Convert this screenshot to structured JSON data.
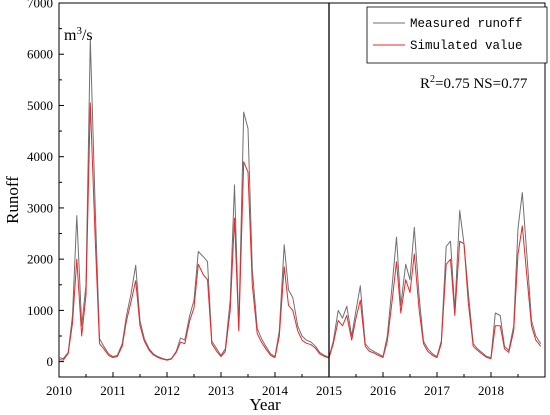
{
  "chart_data": {
    "type": "line",
    "title": "",
    "xlabel": "Year",
    "ylabel": "Runoff",
    "yunit_base": "m",
    "yunit_sup": "3",
    "yunit_suffix": "/s",
    "xlim": [
      2010,
      2019
    ],
    "ylim": [
      -300,
      7000
    ],
    "x_ticks": [
      2010,
      2011,
      2012,
      2013,
      2014,
      2015,
      2016,
      2017,
      2018
    ],
    "x_tick_labels": [
      "2010",
      "2011",
      "2012",
      "2013",
      "2014",
      "2015",
      "2016",
      "2017",
      "2018"
    ],
    "y_ticks": [
      0,
      1000,
      2000,
      3000,
      4000,
      5000,
      6000,
      7000
    ],
    "y_tick_labels": [
      "0",
      "1000",
      "2000",
      "3000",
      "4000",
      "5000",
      "6000",
      "7000"
    ],
    "divider_x": 2015,
    "grid": false,
    "legend_position": "top-right",
    "annotation": {
      "r_label": "R",
      "r_sup": "2",
      "r_value": "=0.75 NS=0.77"
    },
    "series": [
      {
        "name": "Measured runoff",
        "color": "#707070",
        "points": [
          [
            2010.0,
            80
          ],
          [
            2010.08,
            60
          ],
          [
            2010.17,
            180
          ],
          [
            2010.25,
            900
          ],
          [
            2010.33,
            2850
          ],
          [
            2010.42,
            700
          ],
          [
            2010.5,
            1500
          ],
          [
            2010.58,
            6300
          ],
          [
            2010.67,
            3000
          ],
          [
            2010.75,
            450
          ],
          [
            2010.83,
            300
          ],
          [
            2010.92,
            150
          ],
          [
            2011.0,
            100
          ],
          [
            2011.08,
            120
          ],
          [
            2011.17,
            350
          ],
          [
            2011.25,
            900
          ],
          [
            2011.33,
            1300
          ],
          [
            2011.42,
            1880
          ],
          [
            2011.5,
            800
          ],
          [
            2011.58,
            450
          ],
          [
            2011.67,
            250
          ],
          [
            2011.75,
            150
          ],
          [
            2011.83,
            100
          ],
          [
            2011.92,
            60
          ],
          [
            2012.0,
            40
          ],
          [
            2012.08,
            60
          ],
          [
            2012.17,
            200
          ],
          [
            2012.25,
            460
          ],
          [
            2012.33,
            420
          ],
          [
            2012.42,
            900
          ],
          [
            2012.5,
            1200
          ],
          [
            2012.58,
            2150
          ],
          [
            2012.67,
            2050
          ],
          [
            2012.75,
            1950
          ],
          [
            2012.83,
            400
          ],
          [
            2012.92,
            250
          ],
          [
            2013.0,
            120
          ],
          [
            2013.08,
            250
          ],
          [
            2013.17,
            1200
          ],
          [
            2013.25,
            3450
          ],
          [
            2013.33,
            650
          ],
          [
            2013.42,
            4870
          ],
          [
            2013.5,
            4550
          ],
          [
            2013.58,
            1800
          ],
          [
            2013.67,
            650
          ],
          [
            2013.75,
            450
          ],
          [
            2013.83,
            300
          ],
          [
            2013.92,
            150
          ],
          [
            2014.0,
            100
          ],
          [
            2014.08,
            600
          ],
          [
            2014.17,
            2280
          ],
          [
            2014.25,
            1400
          ],
          [
            2014.33,
            1250
          ],
          [
            2014.42,
            700
          ],
          [
            2014.5,
            500
          ],
          [
            2014.58,
            420
          ],
          [
            2014.67,
            380
          ],
          [
            2014.75,
            300
          ],
          [
            2014.83,
            180
          ],
          [
            2014.92,
            120
          ],
          [
            2015.0,
            80
          ],
          [
            2015.08,
            400
          ],
          [
            2015.17,
            1000
          ],
          [
            2015.25,
            850
          ],
          [
            2015.33,
            1080
          ],
          [
            2015.42,
            500
          ],
          [
            2015.5,
            1000
          ],
          [
            2015.58,
            1480
          ],
          [
            2015.67,
            350
          ],
          [
            2015.75,
            250
          ],
          [
            2015.83,
            200
          ],
          [
            2015.92,
            150
          ],
          [
            2016.0,
            100
          ],
          [
            2016.08,
            500
          ],
          [
            2016.17,
            1500
          ],
          [
            2016.25,
            2430
          ],
          [
            2016.33,
            1100
          ],
          [
            2016.42,
            1900
          ],
          [
            2016.5,
            1600
          ],
          [
            2016.58,
            2620
          ],
          [
            2016.67,
            1250
          ],
          [
            2016.75,
            400
          ],
          [
            2016.83,
            250
          ],
          [
            2016.92,
            150
          ],
          [
            2017.0,
            100
          ],
          [
            2017.08,
            400
          ],
          [
            2017.17,
            2250
          ],
          [
            2017.25,
            2350
          ],
          [
            2017.33,
            1000
          ],
          [
            2017.42,
            2950
          ],
          [
            2017.5,
            2300
          ],
          [
            2017.58,
            1350
          ],
          [
            2017.67,
            350
          ],
          [
            2017.75,
            250
          ],
          [
            2017.83,
            180
          ],
          [
            2017.92,
            100
          ],
          [
            2018.0,
            80
          ],
          [
            2018.08,
            950
          ],
          [
            2018.17,
            900
          ],
          [
            2018.25,
            300
          ],
          [
            2018.33,
            220
          ],
          [
            2018.42,
            700
          ],
          [
            2018.5,
            2600
          ],
          [
            2018.58,
            3300
          ],
          [
            2018.67,
            2000
          ],
          [
            2018.75,
            800
          ],
          [
            2018.83,
            500
          ],
          [
            2018.92,
            350
          ]
        ]
      },
      {
        "name": "Simulated value",
        "color": "#e8282a",
        "points": [
          [
            2010.0,
            40
          ],
          [
            2010.08,
            30
          ],
          [
            2010.17,
            160
          ],
          [
            2010.25,
            750
          ],
          [
            2010.33,
            2000
          ],
          [
            2010.42,
            500
          ],
          [
            2010.5,
            1300
          ],
          [
            2010.58,
            5050
          ],
          [
            2010.67,
            2400
          ],
          [
            2010.75,
            350
          ],
          [
            2010.83,
            250
          ],
          [
            2010.92,
            120
          ],
          [
            2011.0,
            80
          ],
          [
            2011.08,
            100
          ],
          [
            2011.17,
            300
          ],
          [
            2011.25,
            800
          ],
          [
            2011.33,
            1150
          ],
          [
            2011.42,
            1580
          ],
          [
            2011.5,
            700
          ],
          [
            2011.58,
            400
          ],
          [
            2011.67,
            220
          ],
          [
            2011.75,
            130
          ],
          [
            2011.83,
            80
          ],
          [
            2011.92,
            50
          ],
          [
            2012.0,
            30
          ],
          [
            2012.08,
            50
          ],
          [
            2012.17,
            180
          ],
          [
            2012.25,
            380
          ],
          [
            2012.33,
            350
          ],
          [
            2012.42,
            800
          ],
          [
            2012.5,
            1050
          ],
          [
            2012.58,
            1900
          ],
          [
            2012.67,
            1700
          ],
          [
            2012.75,
            1600
          ],
          [
            2012.83,
            350
          ],
          [
            2012.92,
            200
          ],
          [
            2013.0,
            100
          ],
          [
            2013.08,
            200
          ],
          [
            2013.17,
            1000
          ],
          [
            2013.25,
            2800
          ],
          [
            2013.33,
            600
          ],
          [
            2013.42,
            3900
          ],
          [
            2013.5,
            3700
          ],
          [
            2013.58,
            1500
          ],
          [
            2013.67,
            550
          ],
          [
            2013.75,
            380
          ],
          [
            2013.83,
            250
          ],
          [
            2013.92,
            120
          ],
          [
            2014.0,
            80
          ],
          [
            2014.08,
            500
          ],
          [
            2014.17,
            1850
          ],
          [
            2014.25,
            1100
          ],
          [
            2014.33,
            1000
          ],
          [
            2014.42,
            600
          ],
          [
            2014.5,
            420
          ],
          [
            2014.58,
            360
          ],
          [
            2014.67,
            330
          ],
          [
            2014.75,
            260
          ],
          [
            2014.83,
            150
          ],
          [
            2014.92,
            100
          ],
          [
            2015.0,
            70
          ],
          [
            2015.08,
            350
          ],
          [
            2015.17,
            800
          ],
          [
            2015.25,
            700
          ],
          [
            2015.33,
            900
          ],
          [
            2015.42,
            420
          ],
          [
            2015.5,
            850
          ],
          [
            2015.58,
            1200
          ],
          [
            2015.67,
            300
          ],
          [
            2015.75,
            200
          ],
          [
            2015.83,
            170
          ],
          [
            2015.92,
            120
          ],
          [
            2016.0,
            80
          ],
          [
            2016.08,
            400
          ],
          [
            2016.17,
            1200
          ],
          [
            2016.25,
            1950
          ],
          [
            2016.33,
            950
          ],
          [
            2016.42,
            1600
          ],
          [
            2016.5,
            1350
          ],
          [
            2016.58,
            2100
          ],
          [
            2016.67,
            1000
          ],
          [
            2016.75,
            350
          ],
          [
            2016.83,
            200
          ],
          [
            2016.92,
            120
          ],
          [
            2017.0,
            80
          ],
          [
            2017.08,
            350
          ],
          [
            2017.17,
            1900
          ],
          [
            2017.25,
            2000
          ],
          [
            2017.33,
            900
          ],
          [
            2017.42,
            2350
          ],
          [
            2017.5,
            2300
          ],
          [
            2017.58,
            1150
          ],
          [
            2017.67,
            300
          ],
          [
            2017.75,
            220
          ],
          [
            2017.83,
            150
          ],
          [
            2017.92,
            80
          ],
          [
            2018.0,
            60
          ],
          [
            2018.08,
            700
          ],
          [
            2018.17,
            700
          ],
          [
            2018.25,
            250
          ],
          [
            2018.33,
            180
          ],
          [
            2018.42,
            600
          ],
          [
            2018.5,
            2100
          ],
          [
            2018.58,
            2650
          ],
          [
            2018.67,
            1600
          ],
          [
            2018.75,
            700
          ],
          [
            2018.83,
            420
          ],
          [
            2018.92,
            300
          ]
        ]
      }
    ]
  }
}
